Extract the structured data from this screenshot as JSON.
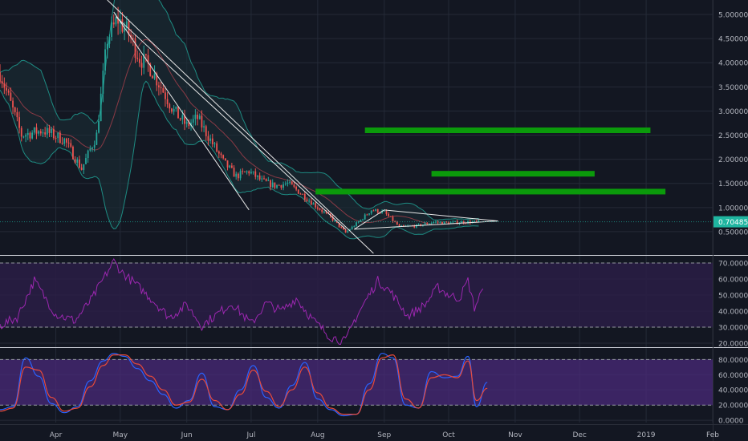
{
  "colors": {
    "background": "#131722",
    "grid": "#242a37",
    "up": "#26a69a",
    "down": "#ef5350",
    "bollinger": "#1e8c83",
    "bollinger_fill": "#1a2d36",
    "ma": "#8a3a45",
    "trendline": "#e8e8e8",
    "target": "#0b9a0b",
    "rsi": "#9c27b0",
    "rsi_band": "#2a1d45",
    "stoch_k": "#2962ff",
    "stoch_d": "#e84a3a",
    "stoch_band": "#4a2a7a",
    "price_label_bg": "#1fb5a0",
    "axis_text": "#b2b5be",
    "separator": "#cfd2da"
  },
  "chart_data": [
    {
      "type": "candlestick",
      "panel": "price",
      "y_ticks": [
        "0.5000000",
        "1.0000000",
        "1.5000000",
        "2.0000000",
        "2.5000000",
        "3.0000000",
        "3.5000000",
        "4.0000000",
        "4.5000000",
        "5.0000000"
      ],
      "y_tick_values": [
        0.5,
        1.0,
        1.5,
        2.0,
        2.5,
        3.0,
        3.5,
        4.0,
        4.5,
        5.0
      ],
      "ylim": [
        0.05,
        5.3
      ],
      "last_price_label": "0.7048546",
      "last_price": 0.7048546,
      "x_ticks": [
        {
          "label": "Apr",
          "date": "2018-04-01"
        },
        {
          "label": "May",
          "date": "2018-05-01"
        },
        {
          "label": "Jun",
          "date": "2018-06-01"
        },
        {
          "label": "Jul",
          "date": "2018-07-01"
        },
        {
          "label": "Aug",
          "date": "2018-08-01"
        },
        {
          "label": "Sep",
          "date": "2018-09-01"
        },
        {
          "label": "Oct",
          "date": "2018-10-01"
        },
        {
          "label": "Nov",
          "date": "2018-11-01"
        },
        {
          "label": "Dec",
          "date": "2018-12-01"
        },
        {
          "label": "2019",
          "date": "2019-01-01"
        },
        {
          "label": "Feb",
          "date": "2019-02-01"
        }
      ],
      "xlim": [
        "2018-03-06",
        "2019-02-01"
      ],
      "price_path": [
        {
          "date": "2018-03-06",
          "close": 3.8
        },
        {
          "date": "2018-03-16",
          "close": 2.5
        },
        {
          "date": "2018-03-26",
          "close": 2.6
        },
        {
          "date": "2018-04-05",
          "close": 2.4
        },
        {
          "date": "2018-04-13",
          "close": 1.8
        },
        {
          "date": "2018-04-20",
          "close": 2.5
        },
        {
          "date": "2018-04-25",
          "close": 4.5
        },
        {
          "date": "2018-04-30",
          "close": 4.9
        },
        {
          "date": "2018-05-05",
          "close": 4.6
        },
        {
          "date": "2018-05-10",
          "close": 4.1
        },
        {
          "date": "2018-05-15",
          "close": 3.9
        },
        {
          "date": "2018-05-20",
          "close": 3.5
        },
        {
          "date": "2018-05-26",
          "close": 3.0
        },
        {
          "date": "2018-06-01",
          "close": 2.7
        },
        {
          "date": "2018-06-06",
          "close": 2.85
        },
        {
          "date": "2018-06-12",
          "close": 2.4
        },
        {
          "date": "2018-06-18",
          "close": 1.95
        },
        {
          "date": "2018-06-24",
          "close": 1.65
        },
        {
          "date": "2018-06-30",
          "close": 1.75
        },
        {
          "date": "2018-07-06",
          "close": 1.55
        },
        {
          "date": "2018-07-12",
          "close": 1.45
        },
        {
          "date": "2018-07-18",
          "close": 1.5
        },
        {
          "date": "2018-07-24",
          "close": 1.3
        },
        {
          "date": "2018-08-01",
          "close": 1.0
        },
        {
          "date": "2018-08-07",
          "close": 0.8
        },
        {
          "date": "2018-08-14",
          "close": 0.48
        },
        {
          "date": "2018-08-20",
          "close": 0.7
        },
        {
          "date": "2018-08-26",
          "close": 0.95
        },
        {
          "date": "2018-09-01",
          "close": 0.9
        },
        {
          "date": "2018-09-08",
          "close": 0.6
        },
        {
          "date": "2018-09-16",
          "close": 0.62
        },
        {
          "date": "2018-09-24",
          "close": 0.7
        },
        {
          "date": "2018-10-01",
          "close": 0.68
        },
        {
          "date": "2018-10-08",
          "close": 0.7
        },
        {
          "date": "2018-10-15",
          "close": 0.7
        }
      ],
      "trendlines": [
        {
          "from": {
            "date": "2018-04-25",
            "price": 5.3
          },
          "to": {
            "date": "2018-08-27",
            "price": 0.05
          }
        },
        {
          "from": {
            "date": "2018-04-28",
            "price": 5.05
          },
          "to": {
            "date": "2018-06-30",
            "price": 0.95
          }
        },
        {
          "from": {
            "date": "2018-04-29",
            "price": 4.95
          },
          "to": {
            "date": "2018-08-14",
            "price": 0.55
          }
        },
        {
          "from": {
            "date": "2018-08-18",
            "price": 0.55
          },
          "to": {
            "date": "2018-10-24",
            "price": 0.72
          }
        },
        {
          "from": {
            "date": "2018-08-18",
            "price": 0.55
          },
          "to": {
            "date": "2018-09-01",
            "price": 0.95
          }
        },
        {
          "from": {
            "date": "2018-09-01",
            "price": 0.95
          },
          "to": {
            "date": "2018-10-24",
            "price": 0.72
          }
        }
      ],
      "target_lines": [
        {
          "price": 2.6,
          "from": "2018-08-23",
          "to": "2019-01-03"
        },
        {
          "price": 1.7,
          "from": "2018-09-23",
          "to": "2018-12-08"
        },
        {
          "price": 1.33,
          "from": "2018-07-31",
          "to": "2019-01-10"
        }
      ]
    },
    {
      "type": "line",
      "panel": "rsi",
      "y_ticks": [
        "20.0000",
        "30.0000",
        "40.0000",
        "50.0000",
        "60.0000",
        "70.0000"
      ],
      "y_tick_values": [
        20,
        30,
        40,
        50,
        60,
        70
      ],
      "ylim": [
        18,
        73
      ],
      "band": [
        30,
        70
      ],
      "series": [
        {
          "x": [
            "2018-03-06",
            "2018-03-14",
            "2018-03-22",
            "2018-04-01",
            "2018-04-10",
            "2018-04-18",
            "2018-04-24",
            "2018-04-28",
            "2018-05-02",
            "2018-05-08",
            "2018-05-16",
            "2018-05-24",
            "2018-06-01",
            "2018-06-08",
            "2018-06-15",
            "2018-06-22",
            "2018-07-01",
            "2018-07-08",
            "2018-07-15",
            "2018-07-22",
            "2018-07-30",
            "2018-08-07",
            "2018-08-14",
            "2018-08-18",
            "2018-08-24",
            "2018-08-29",
            "2018-09-04",
            "2018-09-12",
            "2018-09-20",
            "2018-09-26",
            "2018-10-01",
            "2018-10-06",
            "2018-10-10",
            "2018-10-13",
            "2018-10-17"
          ],
          "values": [
            31,
            36,
            59,
            38,
            34,
            48,
            62,
            71,
            64,
            57,
            47,
            36,
            44,
            31,
            38,
            45,
            32,
            45,
            40,
            48,
            34,
            24,
            21,
            34,
            48,
            59,
            52,
            37,
            44,
            55,
            50,
            48,
            59,
            42,
            54
          ]
        }
      ]
    },
    {
      "type": "line",
      "panel": "stochastic",
      "y_ticks": [
        "0.0000",
        "20.0000",
        "40.0000",
        "60.0000",
        "80.0000"
      ],
      "y_tick_values": [
        0,
        20,
        40,
        60,
        80
      ],
      "ylim": [
        -3,
        93
      ],
      "band": [
        20,
        80
      ],
      "series": [
        {
          "x": [
            "2018-03-06",
            "2018-03-12",
            "2018-03-18",
            "2018-03-24",
            "2018-03-30",
            "2018-04-05",
            "2018-04-11",
            "2018-04-17",
            "2018-04-23",
            "2018-04-28",
            "2018-05-03",
            "2018-05-09",
            "2018-05-15",
            "2018-05-21",
            "2018-05-27",
            "2018-06-02",
            "2018-06-08",
            "2018-06-14",
            "2018-06-20",
            "2018-06-26",
            "2018-07-02",
            "2018-07-08",
            "2018-07-14",
            "2018-07-20",
            "2018-07-26",
            "2018-08-01",
            "2018-08-07",
            "2018-08-13",
            "2018-08-19",
            "2018-08-25",
            "2018-08-31",
            "2018-09-05",
            "2018-09-11",
            "2018-09-17",
            "2018-09-23",
            "2018-09-29",
            "2018-10-05",
            "2018-10-10",
            "2018-10-14",
            "2018-10-19"
          ],
          "values": [
            14,
            18,
            82,
            58,
            22,
            10,
            18,
            52,
            78,
            88,
            84,
            68,
            52,
            34,
            16,
            26,
            62,
            18,
            14,
            40,
            72,
            30,
            16,
            46,
            76,
            28,
            14,
            6,
            8,
            48,
            88,
            82,
            20,
            16,
            64,
            56,
            58,
            84,
            18,
            50
          ]
        },
        {
          "x": [
            "2018-03-06",
            "2018-03-12",
            "2018-03-18",
            "2018-03-24",
            "2018-03-30",
            "2018-04-05",
            "2018-04-11",
            "2018-04-17",
            "2018-04-23",
            "2018-04-28",
            "2018-05-03",
            "2018-05-09",
            "2018-05-15",
            "2018-05-21",
            "2018-05-27",
            "2018-06-02",
            "2018-06-08",
            "2018-06-14",
            "2018-06-20",
            "2018-06-26",
            "2018-07-02",
            "2018-07-08",
            "2018-07-14",
            "2018-07-20",
            "2018-07-26",
            "2018-08-01",
            "2018-08-07",
            "2018-08-13",
            "2018-08-19",
            "2018-08-25",
            "2018-08-31",
            "2018-09-05",
            "2018-09-11",
            "2018-09-17",
            "2018-09-23",
            "2018-09-29",
            "2018-10-05",
            "2018-10-10",
            "2018-10-14",
            "2018-10-19"
          ],
          "values": [
            12,
            16,
            70,
            66,
            30,
            12,
            16,
            44,
            72,
            86,
            86,
            74,
            58,
            40,
            20,
            24,
            54,
            26,
            14,
            34,
            66,
            38,
            18,
            40,
            70,
            36,
            16,
            8,
            8,
            40,
            82,
            86,
            28,
            16,
            56,
            60,
            56,
            78,
            26,
            42
          ]
        }
      ]
    }
  ]
}
